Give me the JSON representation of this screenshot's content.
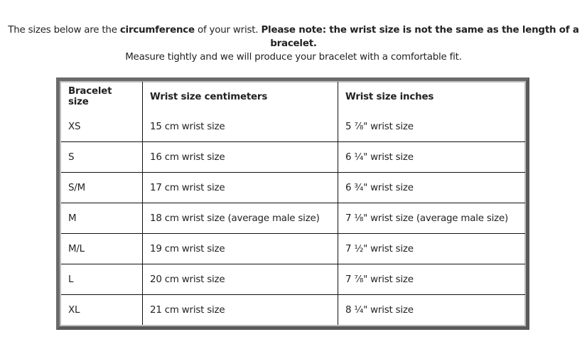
{
  "intro": {
    "line1_a": "The sizes below are the ",
    "line1_bold1": "circumference",
    "line1_b": " of your wrist. ",
    "line1_bold2": "Please note: the wrist size is not the same as the length of a bracelet.",
    "line2": "Measure tightly and we will produce your bracelet with a comfortable fit."
  },
  "table": {
    "headers": [
      "Bracelet size",
      "Wrist size centimeters",
      "Wrist size inches"
    ],
    "rows": [
      [
        "XS",
        "15 cm wrist size",
        "5 ⅞\" wrist size"
      ],
      [
        "S",
        "16 cm wrist size",
        "6 ¼\" wrist size"
      ],
      [
        "S/M",
        "17 cm wrist size",
        "6 ¾\" wrist size"
      ],
      [
        "M",
        "18 cm wrist size (average male size)",
        "7 ⅛\" wrist size (average male size)"
      ],
      [
        "M/L",
        "19 cm wrist size",
        "7 ½\" wrist size"
      ],
      [
        "L",
        "20 cm wrist size",
        "7 ⅞\" wrist size"
      ],
      [
        "XL",
        "21 cm wrist size",
        "8 ¼\" wrist size"
      ]
    ]
  }
}
